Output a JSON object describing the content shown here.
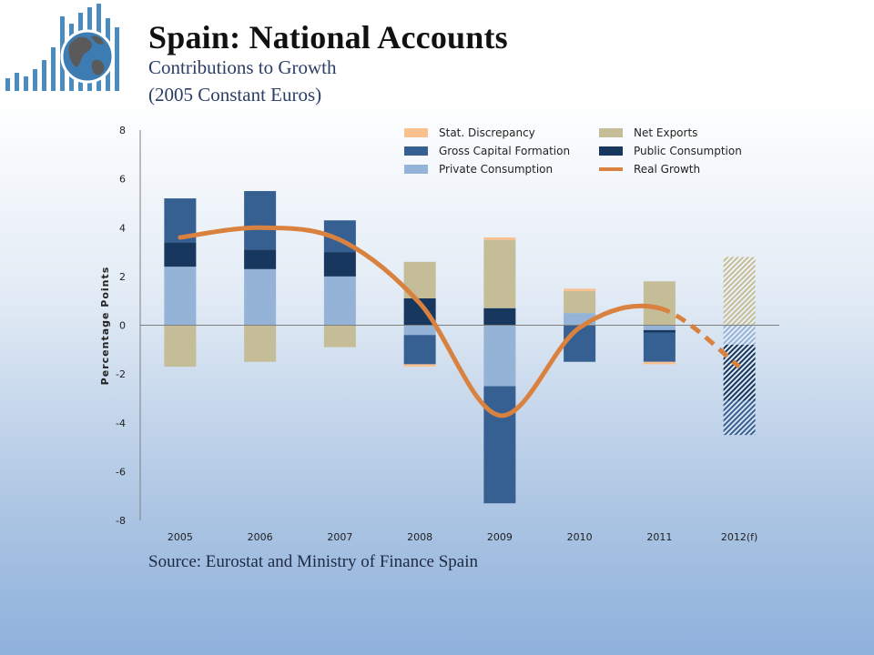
{
  "header": {
    "title": "Spain: National Accounts",
    "subtitle": "Contributions to Growth",
    "subtitle2": "(2005 Constant Euros)"
  },
  "footer": {
    "source": "Source: Eurostat and Ministry of Finance Spain"
  },
  "logo": {
    "icon": "globe-bar-chart-icon"
  },
  "chart_data": {
    "type": "bar",
    "stacked": true,
    "ylabel": "Percentage Points",
    "ylim": [
      -8,
      8
    ],
    "yticks": [
      -8,
      -6,
      -4,
      -2,
      0,
      2,
      4,
      6,
      8
    ],
    "categories": [
      "2005",
      "2006",
      "2007",
      "2008",
      "2009",
      "2010",
      "2011",
      "2012(f)"
    ],
    "forecast_category": "2012(f)",
    "legend_position": "top-right",
    "series": [
      {
        "name": "Private Consumption",
        "color": "#95b3d7",
        "values": [
          2.4,
          2.3,
          2.0,
          -0.4,
          -2.5,
          0.5,
          -0.2,
          -0.8
        ]
      },
      {
        "name": "Public Consumption",
        "color": "#17375e",
        "values": [
          1.0,
          0.8,
          1.0,
          1.1,
          0.7,
          0.0,
          -0.1,
          -2.3
        ]
      },
      {
        "name": "Gross Capital Formation",
        "color": "#366092",
        "values": [
          1.8,
          2.4,
          1.3,
          -1.2,
          -4.8,
          -1.5,
          -1.2,
          -1.4
        ]
      },
      {
        "name": "Net Exports",
        "color": "#c4bd97",
        "values": [
          -1.7,
          -1.5,
          -0.9,
          1.5,
          2.8,
          0.9,
          1.8,
          2.8
        ]
      },
      {
        "name": "Stat. Discrepancy",
        "color": "#fac090",
        "values": [
          0.0,
          0.0,
          0.0,
          -0.1,
          0.1,
          0.1,
          -0.1,
          0.0
        ]
      }
    ],
    "line": {
      "name": "Real Growth",
      "color": "#d9823f",
      "values": [
        3.6,
        4.0,
        3.5,
        0.9,
        -3.7,
        -0.1,
        0.7,
        -1.7
      ]
    }
  }
}
